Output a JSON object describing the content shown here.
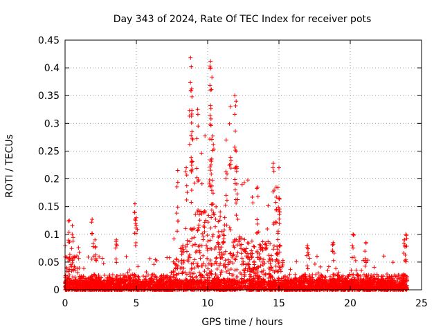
{
  "chart_data": {
    "type": "scatter",
    "title": "Day 343 of 2024, Rate Of TEC Index for receiver pots",
    "xlabel": "GPS time / hours",
    "ylabel": "ROTI / TECUs",
    "xlim": [
      0,
      25
    ],
    "ylim": [
      0,
      0.45
    ],
    "x_ticks": [
      0,
      5,
      10,
      15,
      20,
      25
    ],
    "x_tick_labels": [
      "0",
      "5",
      "10",
      "15",
      "20",
      "25"
    ],
    "y_ticks": [
      0,
      0.05,
      0.1,
      0.15,
      0.2,
      0.25,
      0.3,
      0.35,
      0.4,
      0.45
    ],
    "y_tick_labels": [
      "0",
      "0.05",
      "0.1",
      "0.15",
      "0.2",
      "0.25",
      "0.3",
      "0.35",
      "0.4",
      "0.45"
    ],
    "grid": true,
    "marker": "+",
    "color": "#ff0000",
    "series": [
      {
        "name": "ROTI",
        "x_range": [
          0,
          24
        ],
        "baseline_band": [
          0.0,
          0.04
        ],
        "highlights": [
          {
            "x": 0.3,
            "y": 0.125
          },
          {
            "x": 0.5,
            "y": 0.1
          },
          {
            "x": 1.9,
            "y": 0.127
          },
          {
            "x": 2.1,
            "y": 0.09
          },
          {
            "x": 3.6,
            "y": 0.09
          },
          {
            "x": 4.9,
            "y": 0.155
          },
          {
            "x": 5.0,
            "y": 0.13
          },
          {
            "x": 7.9,
            "y": 0.215
          },
          {
            "x": 8.5,
            "y": 0.22
          },
          {
            "x": 8.8,
            "y": 0.418
          },
          {
            "x": 8.85,
            "y": 0.402
          },
          {
            "x": 8.9,
            "y": 0.348
          },
          {
            "x": 8.9,
            "y": 0.285
          },
          {
            "x": 9.3,
            "y": 0.325
          },
          {
            "x": 10.2,
            "y": 0.412
          },
          {
            "x": 10.2,
            "y": 0.4
          },
          {
            "x": 10.3,
            "y": 0.383
          },
          {
            "x": 10.2,
            "y": 0.36
          },
          {
            "x": 10.4,
            "y": 0.262
          },
          {
            "x": 11.3,
            "y": 0.27
          },
          {
            "x": 11.6,
            "y": 0.33
          },
          {
            "x": 11.9,
            "y": 0.35
          },
          {
            "x": 12.0,
            "y": 0.34
          },
          {
            "x": 12.0,
            "y": 0.25
          },
          {
            "x": 13.5,
            "y": 0.185
          },
          {
            "x": 14.6,
            "y": 0.228
          },
          {
            "x": 15.0,
            "y": 0.22
          },
          {
            "x": 14.8,
            "y": 0.185
          },
          {
            "x": 15.0,
            "y": 0.165
          },
          {
            "x": 17.0,
            "y": 0.08
          },
          {
            "x": 18.8,
            "y": 0.085
          },
          {
            "x": 20.2,
            "y": 0.1
          },
          {
            "x": 21.1,
            "y": 0.085
          },
          {
            "x": 23.9,
            "y": 0.1
          },
          {
            "x": 23.8,
            "y": 0.09
          }
        ]
      }
    ]
  }
}
